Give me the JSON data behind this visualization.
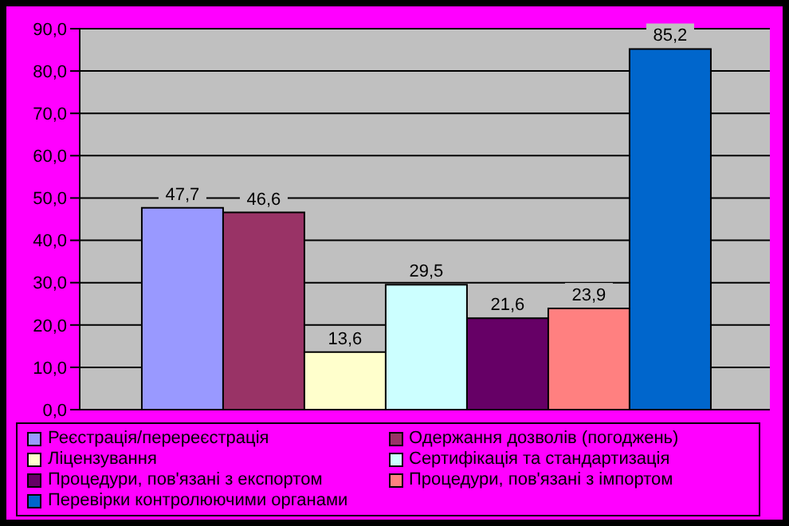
{
  "chart_data": {
    "type": "bar",
    "categories": [
      null
    ],
    "series": [
      {
        "name": "Реєстрація/перереєстрація",
        "color": "#9999ff",
        "values": [
          47.7
        ],
        "value_labels": [
          "47,7"
        ]
      },
      {
        "name": "Одержання дозволів (погоджень)",
        "color": "#993366",
        "values": [
          46.6
        ],
        "value_labels": [
          "46,6"
        ]
      },
      {
        "name": "Ліцензування",
        "color": "#ffffcc",
        "values": [
          13.6
        ],
        "value_labels": [
          "13,6"
        ]
      },
      {
        "name": "Сертифікація та стандартизація",
        "color": "#ccffff",
        "values": [
          29.5
        ],
        "value_labels": [
          "29,5"
        ]
      },
      {
        "name": "Процедури, пов'язані з експортом",
        "color": "#660066",
        "values": [
          21.6
        ],
        "value_labels": [
          "21,6"
        ]
      },
      {
        "name": "Процедури, пов'язані з імпортом",
        "color": "#ff8080",
        "values": [
          23.9
        ],
        "value_labels": [
          "23,9"
        ]
      },
      {
        "name": "Перевірки контролюючими органами",
        "color": "#0066cc",
        "values": [
          85.2
        ],
        "value_labels": [
          "85,2"
        ]
      }
    ],
    "ylim": [
      0,
      90
    ],
    "yticks": [
      {
        "value": 0,
        "label": "0,0"
      },
      {
        "value": 10,
        "label": "10,0"
      },
      {
        "value": 20,
        "label": "20,0"
      },
      {
        "value": 30,
        "label": "30,0"
      },
      {
        "value": 40,
        "label": "40,0"
      },
      {
        "value": 50,
        "label": "50,0"
      },
      {
        "value": 60,
        "label": "60,0"
      },
      {
        "value": 70,
        "label": "70,0"
      },
      {
        "value": 80,
        "label": "80,0"
      },
      {
        "value": 90,
        "label": "90,0"
      }
    ],
    "grid": "y",
    "legend": "bottom"
  }
}
